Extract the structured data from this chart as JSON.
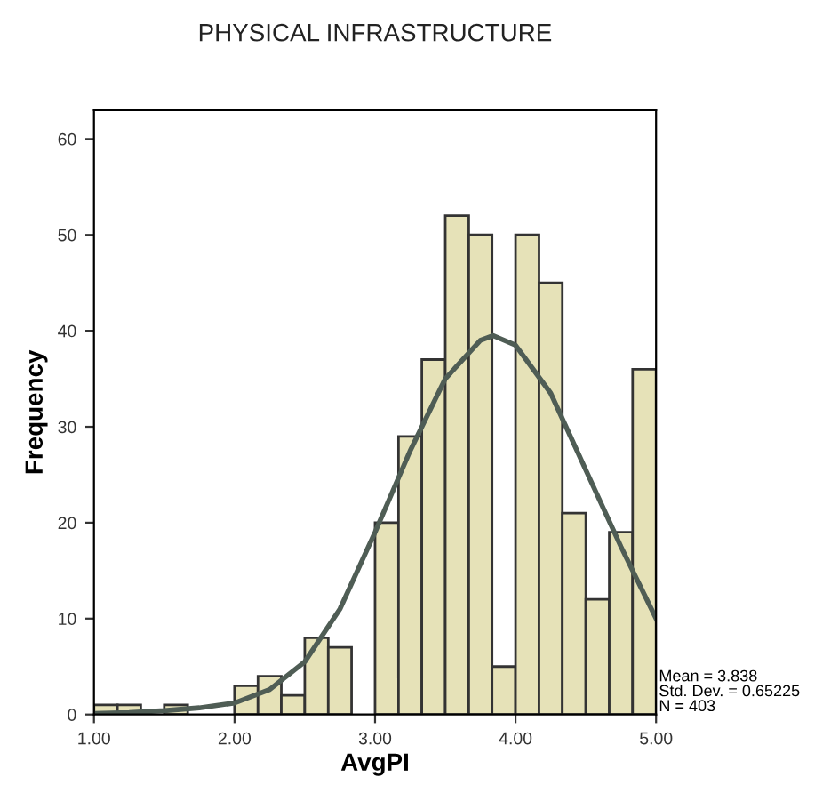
{
  "chart_data": {
    "type": "histogram",
    "title": "PHYSICAL INFRASTRUCTURE",
    "xlabel": "AvgPI",
    "ylabel": "Frequency",
    "series": [
      {
        "color": "#e6e2b8",
        "bins": [
          1,
          1.167,
          1.333,
          1.5,
          1.667,
          1.833,
          2,
          2.167,
          2.333,
          2.5,
          2.667,
          2.833,
          3,
          3.167,
          3.333,
          3.5,
          3.667,
          3.833,
          4,
          4.167,
          4.333,
          4.5,
          4.667,
          4.833,
          5
        ],
        "values": [
          1,
          1,
          0,
          1,
          0,
          0,
          3,
          4,
          2,
          8,
          7,
          0,
          20,
          29,
          37,
          52,
          50,
          5,
          50,
          45,
          21,
          12,
          19,
          36
        ]
      },
      {
        "type": "line",
        "color": "#4f5d55",
        "x": [
          1.0,
          1.25,
          1.5,
          1.75,
          2.0,
          2.25,
          2.5,
          2.75,
          3.0,
          3.25,
          3.5,
          3.75,
          3.84,
          4.0,
          4.25,
          4.5,
          4.75,
          5.0
        ],
        "values": [
          0.1,
          0.2,
          0.4,
          0.7,
          1.2,
          2.6,
          5.5,
          11,
          19,
          27.5,
          35,
          39,
          39.5,
          38.5,
          33.5,
          25.5,
          17.5,
          10
        ]
      }
    ],
    "xlim": [
      1,
      5
    ],
    "xticks": [
      {
        "value": 1,
        "label": "1.00"
      },
      {
        "value": 2,
        "label": "2.00"
      },
      {
        "value": 3,
        "label": "3.00"
      },
      {
        "value": 4,
        "label": "4.00"
      },
      {
        "value": 5,
        "label": "5.00"
      }
    ],
    "ylim": [
      0,
      63
    ],
    "yticks": [
      0,
      10,
      20,
      30,
      40,
      50,
      60
    ],
    "annotations": [
      "Mean = 3.838",
      "Std. Dev. = 0.65225",
      "N = 403"
    ],
    "marker": "none",
    "line_style": "solid",
    "grid": false
  }
}
